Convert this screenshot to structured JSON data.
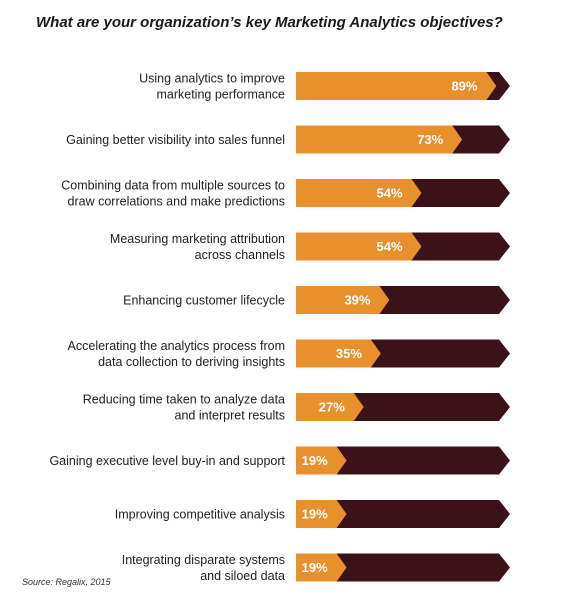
{
  "chart_data": {
    "type": "bar",
    "title": "What are your organization’s key Marketing Analytics objectives?",
    "source": "Source: Regalix, 2015",
    "xlim": [
      0,
      100
    ],
    "colors": {
      "fill": "#E8902C",
      "remainder": "#3A1218"
    },
    "categories": [
      [
        "Using analytics to improve",
        "marketing performance"
      ],
      [
        "Gaining better visibility into sales funnel"
      ],
      [
        "Combining data from multiple sources to",
        "draw correlations and make predictions"
      ],
      [
        "Measuring marketing attribution",
        "across channels"
      ],
      [
        "Enhancing customer lifecycle"
      ],
      [
        "Accelerating the analytics process from",
        "data collection to deriving insights"
      ],
      [
        "Reducing time taken to analyze data",
        "and interpret results"
      ],
      [
        "Gaining executive level buy-in and support"
      ],
      [
        "Improving competitive analysis"
      ],
      [
        "Integrating disparate systems",
        "and siloed data"
      ]
    ],
    "values": [
      89,
      73,
      54,
      54,
      39,
      35,
      27,
      19,
      19,
      19
    ],
    "value_labels": [
      "89%",
      "73%",
      "54%",
      "54%",
      "39%",
      "35%",
      "27%",
      "19%",
      "19%",
      "19%"
    ]
  }
}
